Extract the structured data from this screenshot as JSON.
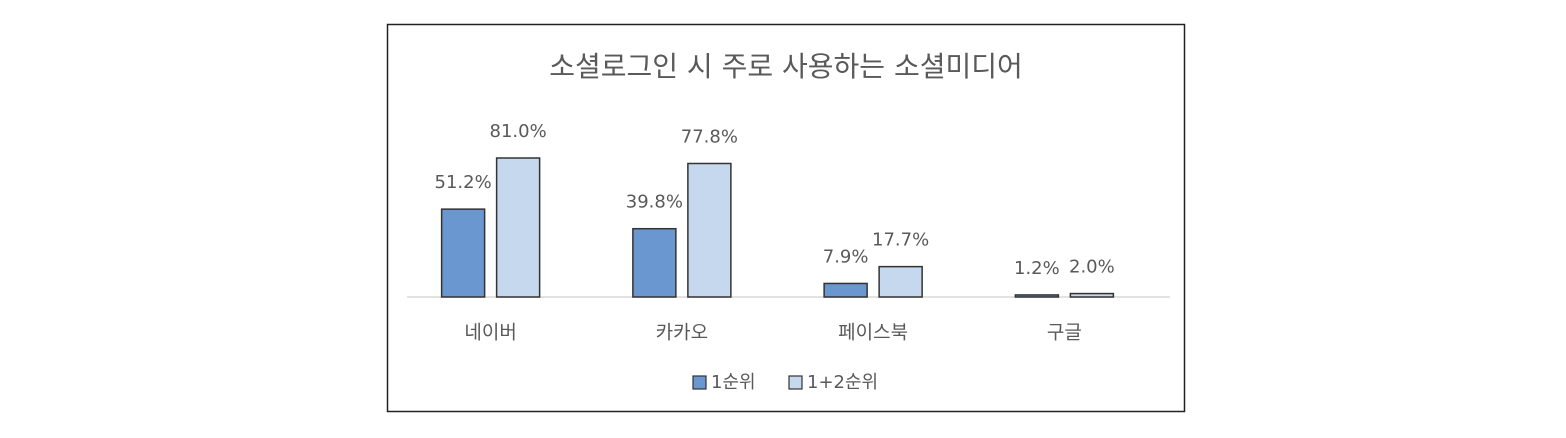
{
  "chart_data": {
    "type": "bar",
    "title": "소셜로그인 시 주로 사용하는 소셜미디어",
    "categories": [
      "네이버",
      "카카오",
      "페이스북",
      "구글"
    ],
    "series": [
      {
        "name": "1순위",
        "color": "#6a97cf",
        "values": [
          51.2,
          39.8,
          7.9,
          1.2
        ],
        "value_labels": [
          "51.2%",
          "39.8%",
          "7.9%",
          "1.2%"
        ]
      },
      {
        "name": "1+2순위",
        "color": "#c5d8ee",
        "values": [
          81.0,
          77.8,
          17.7,
          2.0
        ],
        "value_labels": [
          "81.0%",
          "77.8%",
          "17.7%",
          "2.0%"
        ]
      }
    ],
    "legend": "bottom"
  }
}
